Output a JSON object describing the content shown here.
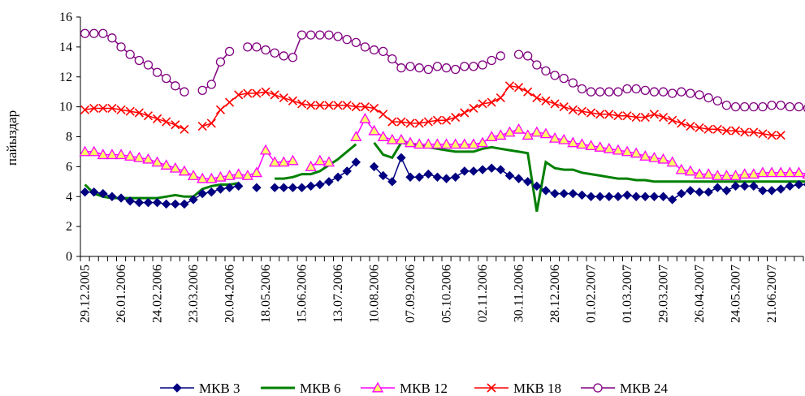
{
  "chart_data": {
    "type": "line",
    "title": "",
    "xlabel": "",
    "ylabel": "пайыздар",
    "ylim": [
      0,
      16
    ],
    "yticks": [
      0,
      2,
      4,
      6,
      8,
      10,
      12,
      14,
      16
    ],
    "x_tick_labels": [
      "29.12.2005",
      "26.01.2006",
      "24.02.2006",
      "23.03.2006",
      "20.04.2006",
      "18.05.2006",
      "15.06.2006",
      "13.07.2006",
      "10.08.2006",
      "07.09.2006",
      "05.10.2006",
      "02.11.2006",
      "30.11.2006",
      "28.12.2006",
      "01.02.2007",
      "01.03.2007",
      "29.03.2007",
      "26.04.2007",
      "24.05.2007",
      "21.06.2007"
    ],
    "points_per_period": 4,
    "grid": false,
    "legend_position": "bottom",
    "series": [
      {
        "name": "МКВ 3",
        "color": "#000080",
        "marker": "diamond",
        "values": [
          4.3,
          4.3,
          4.2,
          4.0,
          3.9,
          3.7,
          3.6,
          3.6,
          3.6,
          3.5,
          3.5,
          3.5,
          3.8,
          4.2,
          4.3,
          4.5,
          4.6,
          4.7,
          null,
          4.6,
          null,
          4.6,
          4.6,
          4.6,
          4.6,
          4.7,
          4.8,
          5.0,
          5.3,
          5.7,
          6.3,
          null,
          6.0,
          5.4,
          5.0,
          6.6,
          5.3,
          5.3,
          5.5,
          5.3,
          5.2,
          5.3,
          5.7,
          5.7,
          5.8,
          5.9,
          5.8,
          5.4,
          5.2,
          5.0,
          4.7,
          4.4,
          4.2,
          4.2,
          4.2,
          4.1,
          4.0,
          4.0,
          4.0,
          4.0,
          4.1,
          4.0,
          4.0,
          4.0,
          4.0,
          3.8,
          4.2,
          4.4,
          4.3,
          4.3,
          4.6,
          4.4,
          4.7,
          4.7,
          4.7,
          4.4,
          4.4,
          4.5,
          4.7,
          4.8,
          4.8
        ]
      },
      {
        "name": "МКВ 6",
        "color": "#008000",
        "marker": "none",
        "values": [
          4.8,
          4.2,
          4.0,
          3.9,
          3.9,
          3.9,
          3.9,
          3.9,
          3.9,
          4.0,
          4.1,
          4.0,
          4.0,
          4.5,
          4.7,
          4.8,
          4.8,
          4.9,
          null,
          null,
          null,
          5.2,
          5.2,
          5.3,
          5.5,
          5.5,
          5.7,
          6.1,
          6.5,
          7.0,
          7.5,
          null,
          7.6,
          6.8,
          6.6,
          7.6,
          7.5,
          7.4,
          7.3,
          7.2,
          7.1,
          7.0,
          7.0,
          7.0,
          7.2,
          7.3,
          7.2,
          7.1,
          7.0,
          6.9,
          3.0,
          6.3,
          5.9,
          5.8,
          5.8,
          5.6,
          5.5,
          5.4,
          5.3,
          5.2,
          5.2,
          5.1,
          5.1,
          5.0,
          5.0,
          5.0,
          5.0,
          5.0,
          5.0,
          5.0,
          5.0,
          5.0,
          5.0,
          5.0,
          5.0,
          5.0,
          5.0,
          5.0,
          5.0,
          5.0,
          5.0
        ]
      },
      {
        "name": "МКВ 12",
        "color": "#ff00ff",
        "marker": "triangle",
        "values": [
          7.0,
          7.0,
          6.8,
          6.8,
          6.8,
          6.7,
          6.6,
          6.5,
          6.3,
          6.1,
          5.9,
          5.7,
          5.4,
          5.2,
          5.2,
          5.3,
          5.4,
          5.5,
          5.4,
          5.6,
          7.1,
          6.3,
          6.3,
          6.4,
          null,
          6.0,
          6.4,
          6.3,
          null,
          null,
          8.0,
          9.2,
          8.4,
          8.0,
          7.8,
          7.8,
          7.6,
          7.5,
          7.5,
          7.5,
          7.5,
          7.5,
          7.5,
          7.5,
          7.6,
          8.0,
          8.1,
          8.3,
          8.5,
          8.1,
          8.3,
          8.2,
          7.9,
          7.8,
          7.6,
          7.5,
          7.4,
          7.3,
          7.2,
          7.1,
          7.0,
          6.9,
          6.7,
          6.6,
          6.5,
          6.3,
          5.8,
          5.7,
          5.5,
          5.5,
          5.4,
          5.4,
          5.4,
          5.5,
          5.5,
          5.6,
          5.6,
          5.6,
          5.6,
          5.6,
          5.5,
          5.5,
          5.5
        ]
      },
      {
        "name": "МКВ 18",
        "color": "#ff0000",
        "marker": "x",
        "values": [
          9.8,
          9.9,
          9.9,
          9.9,
          9.8,
          9.7,
          9.6,
          9.4,
          9.2,
          9.0,
          8.8,
          8.5,
          null,
          8.7,
          8.9,
          9.8,
          10.3,
          10.8,
          10.9,
          10.9,
          11.0,
          10.8,
          10.6,
          10.4,
          10.2,
          10.1,
          10.1,
          10.1,
          10.1,
          10.1,
          10.0,
          10.0,
          9.9,
          9.5,
          9.0,
          9.0,
          8.9,
          8.9,
          9.0,
          9.1,
          9.1,
          9.3,
          9.6,
          9.9,
          10.2,
          10.3,
          10.6,
          11.4,
          11.3,
          11.0,
          10.6,
          10.4,
          10.2,
          10.0,
          9.8,
          9.7,
          9.6,
          9.5,
          9.5,
          9.4,
          9.4,
          9.3,
          9.3,
          9.5,
          9.3,
          9.1,
          8.9,
          8.7,
          8.6,
          8.5,
          8.5,
          8.4,
          8.4,
          8.3,
          8.3,
          8.2,
          8.1,
          8.1
        ]
      },
      {
        "name": "МКВ 24",
        "color": "#800080",
        "marker": "circle",
        "values": [
          14.9,
          14.9,
          14.9,
          14.6,
          14.0,
          13.5,
          13.1,
          12.8,
          12.3,
          11.9,
          11.4,
          11.0,
          null,
          11.1,
          11.5,
          13.0,
          13.7,
          null,
          14.0,
          14.0,
          13.8,
          13.6,
          13.4,
          13.3,
          14.8,
          14.8,
          14.8,
          14.8,
          14.7,
          14.5,
          14.3,
          14.0,
          13.8,
          13.7,
          13.2,
          12.6,
          12.7,
          12.6,
          12.5,
          12.7,
          12.6,
          12.5,
          12.7,
          12.7,
          12.8,
          13.1,
          13.4,
          null,
          13.5,
          13.4,
          12.8,
          12.4,
          12.1,
          11.9,
          11.6,
          11.2,
          11.0,
          11.0,
          11.0,
          11.0,
          11.2,
          11.2,
          11.1,
          11.0,
          11.0,
          10.9,
          11.0,
          10.9,
          10.8,
          10.6,
          10.4,
          10.1,
          10.0,
          10.0,
          10.0,
          10.0,
          10.1,
          10.1,
          10.0,
          10.0,
          9.9,
          9.9
        ]
      }
    ]
  }
}
